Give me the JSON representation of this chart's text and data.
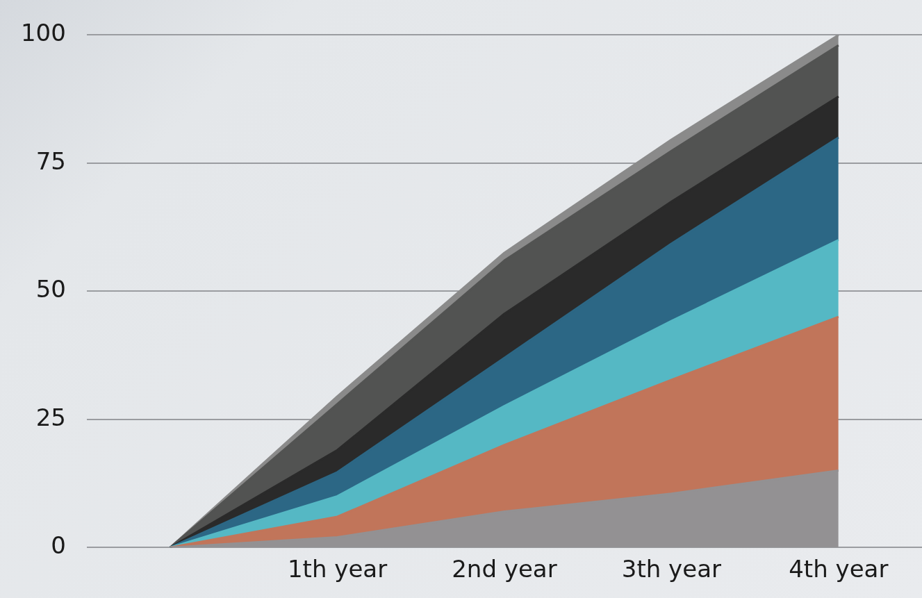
{
  "chart_data": {
    "type": "area",
    "stacked": true,
    "categories": [
      null,
      "1th year",
      "2nd year",
      "3th year",
      "4th year"
    ],
    "series": [
      {
        "color": "#939193",
        "values": [
          0,
          2,
          7,
          10.5,
          15
        ]
      },
      {
        "color": "#c1755a",
        "values": [
          0,
          4,
          13,
          22.2,
          30
        ]
      },
      {
        "color": "#55b8c4",
        "values": [
          0,
          4,
          7.6,
          11.5,
          15
        ]
      },
      {
        "color": "#2c6785",
        "values": [
          0,
          4.7,
          9.4,
          15.1,
          20
        ]
      },
      {
        "color": "#2a2a2a",
        "values": [
          0,
          4.3,
          8.6,
          8.2,
          8
        ]
      },
      {
        "color": "#525352",
        "values": [
          0,
          9,
          10.4,
          9.9,
          10
        ]
      },
      {
        "color": "#8a8a8a",
        "values": [
          0,
          1.5,
          1.5,
          2.2,
          2
        ]
      }
    ],
    "ylim": [
      0,
      100
    ],
    "yticks": [
      0,
      25,
      50,
      75,
      100
    ],
    "grid": "y",
    "legend": false
  }
}
